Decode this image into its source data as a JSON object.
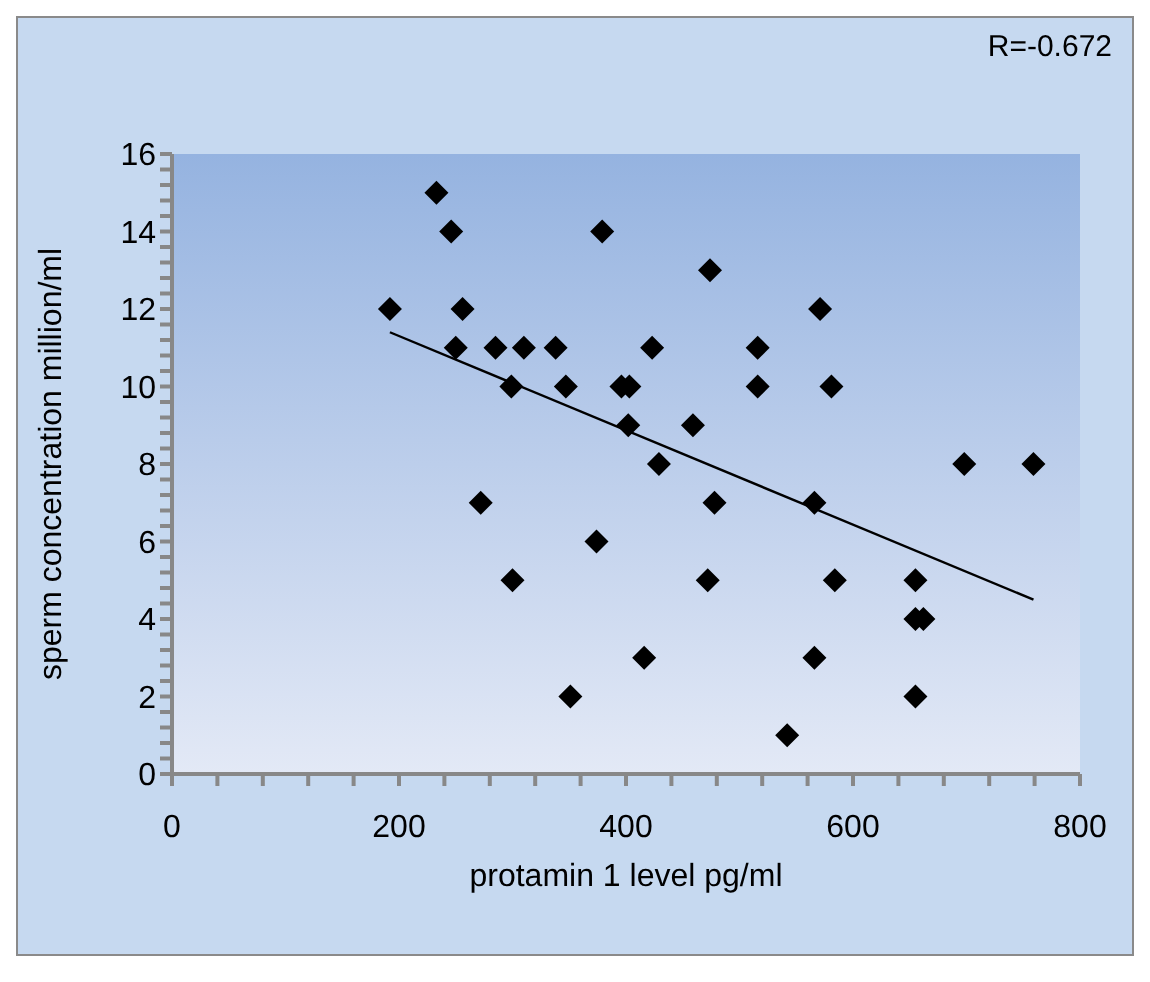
{
  "chart_data": {
    "type": "scatter",
    "xlabel": "protamin 1  level pg/ml",
    "ylabel": "sperm concentration million/ml",
    "annotations": [
      "R=-0.672"
    ],
    "xlim": [
      0,
      800
    ],
    "ylim": [
      0,
      16
    ],
    "xticks": [
      0,
      {
        "value": 40,
        "label": null
      },
      {
        "value": 80,
        "label": null
      },
      {
        "value": 120,
        "label": null
      },
      {
        "value": 160,
        "label": null
      },
      200,
      {
        "value": 240,
        "label": null
      },
      {
        "value": 280,
        "label": null
      },
      {
        "value": 320,
        "label": null
      },
      {
        "value": 360,
        "label": null
      },
      400,
      {
        "value": 440,
        "label": null
      },
      {
        "value": 480,
        "label": null
      },
      {
        "value": 520,
        "label": null
      },
      {
        "value": 560,
        "label": null
      },
      600,
      {
        "value": 640,
        "label": null
      },
      {
        "value": 680,
        "label": null
      },
      {
        "value": 720,
        "label": null
      },
      {
        "value": 760,
        "label": null
      },
      800
    ],
    "yticks": [
      0,
      {
        "value": 0.4,
        "label": null
      },
      {
        "value": 0.8,
        "label": null
      },
      {
        "value": 1.2,
        "label": null
      },
      {
        "value": 1.6,
        "label": null
      },
      2,
      {
        "value": 2.4,
        "label": null
      },
      {
        "value": 2.8,
        "label": null
      },
      {
        "value": 3.2,
        "label": null
      },
      {
        "value": 3.6,
        "label": null
      },
      4,
      {
        "value": 4.4,
        "label": null
      },
      {
        "value": 4.8,
        "label": null
      },
      {
        "value": 5.2,
        "label": null
      },
      {
        "value": 5.6,
        "label": null
      },
      6,
      {
        "value": 6.4,
        "label": null
      },
      {
        "value": 6.8,
        "label": null
      },
      {
        "value": 7.2,
        "label": null
      },
      {
        "value": 7.6,
        "label": null
      },
      8,
      {
        "value": 8.4,
        "label": null
      },
      {
        "value": 8.8,
        "label": null
      },
      {
        "value": 9.2,
        "label": null
      },
      {
        "value": 9.6,
        "label": null
      },
      10,
      {
        "value": 10.4,
        "label": null
      },
      {
        "value": 10.8,
        "label": null
      },
      {
        "value": 11.2,
        "label": null
      },
      {
        "value": 11.6,
        "label": null
      },
      12,
      {
        "value": 12.4,
        "label": null
      },
      {
        "value": 12.8,
        "label": null
      },
      {
        "value": 13.2,
        "label": null
      },
      {
        "value": 13.6,
        "label": null
      },
      14,
      {
        "value": 14.4,
        "label": null
      },
      {
        "value": 14.8,
        "label": null
      },
      {
        "value": 15.2,
        "label": null
      },
      {
        "value": 15.6,
        "label": null
      },
      16
    ],
    "grid": false,
    "marker": "diamond",
    "series": [
      {
        "color": "#000000",
        "x": [
          192,
          233,
          246,
          256,
          250,
          285,
          310,
          338,
          299,
          347,
          272,
          300,
          351,
          374,
          379,
          396,
          403,
          402,
          423,
          429,
          416,
          474,
          459,
          478,
          472,
          516,
          516,
          571,
          581,
          566,
          584,
          566,
          542,
          655,
          655,
          662,
          655,
          698,
          759
        ],
        "values": [
          12,
          15,
          14,
          12,
          11,
          11,
          11,
          11,
          10,
          10,
          7,
          5,
          2,
          6,
          14,
          10,
          10,
          9,
          11,
          8,
          3,
          13,
          9,
          7,
          5,
          11,
          10,
          12,
          10,
          7,
          5,
          3,
          1,
          5,
          4,
          4,
          2,
          8,
          8
        ]
      },
      {
        "type": "line",
        "marker": "none",
        "color": "#000000",
        "x": [
          192,
          759
        ],
        "values": [
          11.4,
          4.5
        ]
      }
    ]
  }
}
